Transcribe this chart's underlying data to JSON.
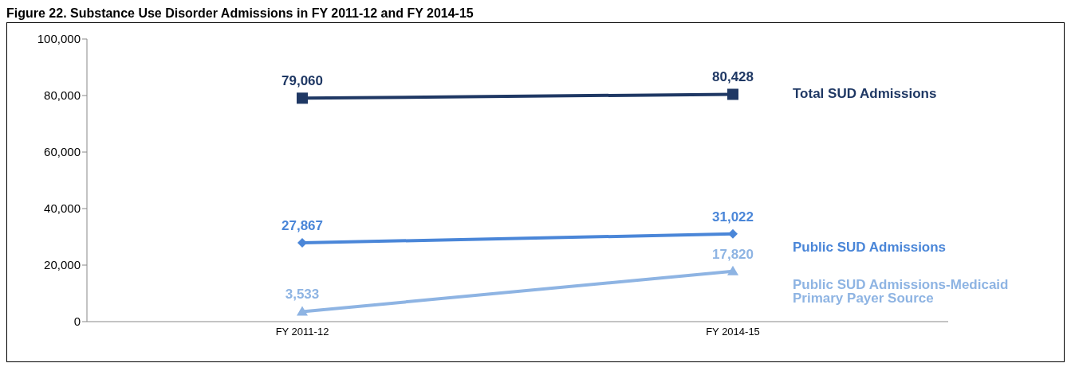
{
  "chart_data": {
    "type": "line",
    "title": "Figure 22. Substance Use Disorder Admissions in FY 2011-12 and FY 2014-15",
    "categories": [
      "FY 2011-12",
      "FY 2014-15"
    ],
    "series": [
      {
        "name": "Total SUD Admissions",
        "color": "#1f3864",
        "marker": "square",
        "values": [
          79060,
          80428
        ],
        "value_labels": [
          "79,060",
          "80,428"
        ]
      },
      {
        "name": "Public SUD Admissions",
        "color": "#4a86d8",
        "marker": "diamond",
        "values": [
          27867,
          31022
        ],
        "value_labels": [
          "27,867",
          "31,022"
        ]
      },
      {
        "name": "Public SUD Admissions-Medicaid Primary Payer Source",
        "color": "#8eb4e3",
        "marker": "triangle",
        "values": [
          3533,
          17820
        ],
        "value_labels": [
          "3,533",
          "17,820"
        ]
      }
    ],
    "ylim": [
      0,
      100000
    ],
    "yticks": [
      {
        "value": 0,
        "label": "0"
      },
      {
        "value": 20000,
        "label": "20,000"
      },
      {
        "value": 40000,
        "label": "40,000"
      },
      {
        "value": 60000,
        "label": "60,000"
      },
      {
        "value": 80000,
        "label": "80,000"
      },
      {
        "value": 100000,
        "label": "100,000"
      }
    ],
    "grid": false,
    "legend": false
  }
}
